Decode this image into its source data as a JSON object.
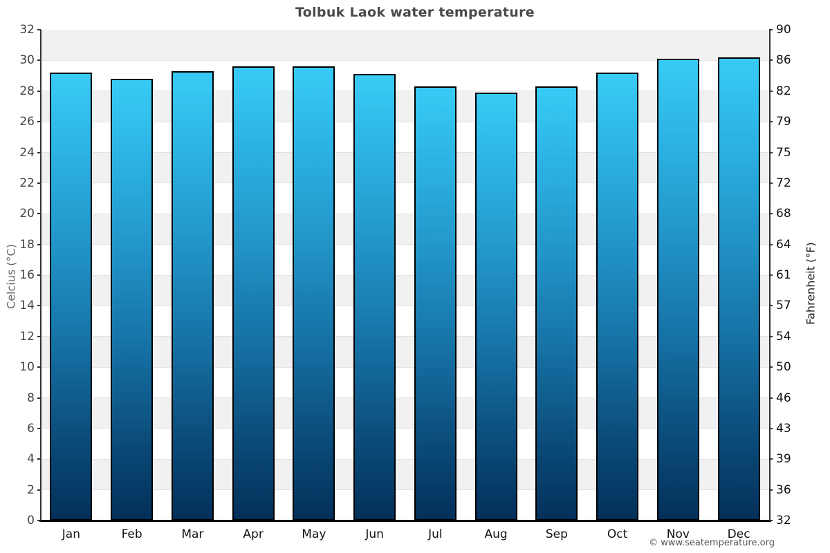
{
  "title": "Tolbuk Laok water temperature",
  "footer_credit": "© www.seatemperature.org",
  "chart_data": {
    "type": "bar",
    "title": "Tolbuk Laok water temperature",
    "categories": [
      "Jan",
      "Feb",
      "Mar",
      "Apr",
      "May",
      "Jun",
      "Jul",
      "Aug",
      "Sep",
      "Oct",
      "Nov",
      "Dec"
    ],
    "values": [
      29.2,
      28.8,
      29.3,
      29.6,
      29.6,
      29.1,
      28.3,
      27.9,
      28.3,
      29.2,
      30.1,
      30.2
    ],
    "ylabel_left": "Celcius (°C)",
    "ylabel_right": "Fahrenheit (°F)",
    "ylim_celsius": [
      0,
      32
    ],
    "yticks_celsius": [
      32,
      30,
      28,
      26,
      24,
      22,
      20,
      18,
      16,
      14,
      12,
      10,
      8,
      6,
      4,
      2,
      0
    ],
    "yticks_fahrenheit": [
      90,
      86,
      82,
      79,
      75,
      72,
      68,
      64,
      61,
      57,
      54,
      50,
      46,
      43,
      39,
      36,
      32
    ],
    "legend": "none",
    "grid": "alternating horizontal bands every 2°C",
    "colors": {
      "band_shaded": "#f1f1f1",
      "band_plain": "#ffffff",
      "gridline": "#e2e2e2",
      "bar_gradient_top": "#38cbf5",
      "bar_gradient_bottom": "#03305a",
      "bar_border": "#000000",
      "title_text": "#4a4a4a",
      "axis_line": "#333333"
    }
  }
}
